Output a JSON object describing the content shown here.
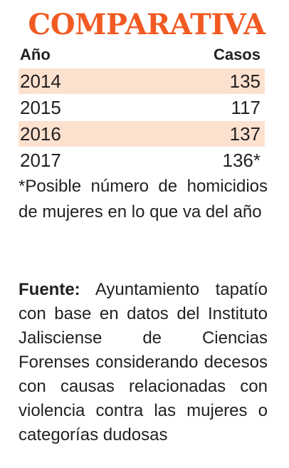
{
  "colors": {
    "accent": "#f15a22",
    "row_shade": "#fce1cf",
    "text": "#231f20"
  },
  "chart_data": {
    "type": "table",
    "title": "COMPARATIVA",
    "columns": [
      "Año",
      "Casos"
    ],
    "rows": [
      {
        "year": "2014",
        "cases": "135",
        "shaded": true
      },
      {
        "year": "2015",
        "cases": "117",
        "shaded": false
      },
      {
        "year": "2016",
        "cases": "137",
        "shaded": true
      },
      {
        "year": "2017",
        "cases": "136*",
        "shaded": false
      }
    ],
    "note": "*Posible número de homicidios de mujeres en lo que va del año",
    "source_label": "Fuente:",
    "source_text": "Ayuntamiento tapatío con base en datos del Instituto Jalisciense de Ciencias Forenses considerando decesos con causas relacionadas con violencia contra las mujeres o categorías dudosas"
  }
}
